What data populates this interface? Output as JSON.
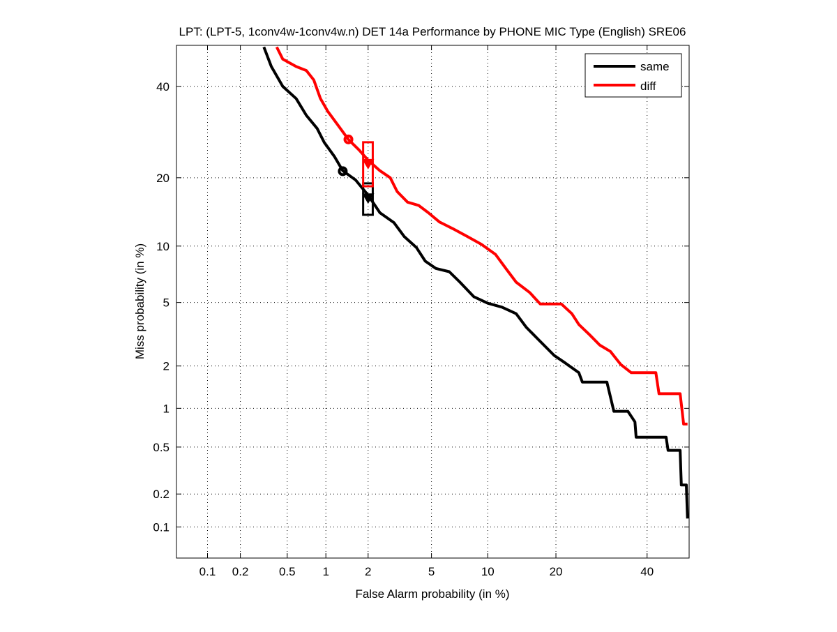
{
  "chart_data": {
    "type": "line",
    "title": "LPT: (LPT-5, 1conv4w-1conv4w.n) DET 14a Performance by PHONE MIC Type (English) SRE06",
    "xlabel": "False Alarm probability (in %)",
    "ylabel": "Miss probability (in %)",
    "xscale": "normal-deviate",
    "yscale": "normal-deviate",
    "xlim": [
      0.05,
      50
    ],
    "ylim": [
      0.05,
      50
    ],
    "xticks": [
      0.1,
      0.2,
      0.5,
      1,
      2,
      5,
      10,
      20,
      40
    ],
    "xtick_labels": [
      "0.1",
      "0.2",
      "0.5",
      "1",
      "2",
      "5",
      "10",
      "20",
      "40"
    ],
    "yticks": [
      0.1,
      0.2,
      0.5,
      1,
      2,
      5,
      10,
      20,
      40
    ],
    "ytick_labels": [
      "0.1",
      "0.2",
      "0.5",
      "1",
      "2",
      "5",
      "10",
      "20",
      "40"
    ],
    "grid": true,
    "legend_placement": "top-right",
    "series": [
      {
        "name": "same",
        "color": "#000000",
        "points": [
          [
            0.32,
            50
          ],
          [
            0.37,
            45
          ],
          [
            0.46,
            40
          ],
          [
            0.59,
            37
          ],
          [
            0.71,
            33
          ],
          [
            0.86,
            30
          ],
          [
            0.97,
            27
          ],
          [
            1.16,
            24
          ],
          [
            1.33,
            21.3
          ],
          [
            1.64,
            19.6
          ],
          [
            2.0,
            17
          ],
          [
            2.4,
            14.3
          ],
          [
            2.96,
            12.9
          ],
          [
            3.44,
            11.1
          ],
          [
            4.07,
            9.85
          ],
          [
            4.6,
            8.4
          ],
          [
            5.3,
            7.7
          ],
          [
            6.3,
            7.4
          ],
          [
            7.2,
            6.5
          ],
          [
            8.5,
            5.4
          ],
          [
            10,
            4.95
          ],
          [
            11.7,
            4.7
          ],
          [
            13.6,
            4.3
          ],
          [
            15.1,
            3.55
          ],
          [
            17.3,
            2.9
          ],
          [
            19.7,
            2.35
          ],
          [
            21.7,
            2.1
          ],
          [
            24.4,
            1.8
          ],
          [
            25.1,
            1.55
          ],
          [
            30.4,
            1.55
          ],
          [
            32,
            0.95
          ],
          [
            35.3,
            0.95
          ],
          [
            37,
            0.79
          ],
          [
            37.3,
            0.6
          ],
          [
            44.8,
            0.6
          ],
          [
            45.3,
            0.47
          ],
          [
            48.4,
            0.47
          ],
          [
            48.7,
            0.24
          ],
          [
            50,
            0.24
          ],
          [
            50.3,
            0.12
          ]
        ],
        "min_dcf_point": [
          1.33,
          21.2
        ],
        "actual_dcf_point": [
          2.0,
          16.5
        ],
        "confidence_box": {
          "fa": [
            1.85,
            2.15
          ],
          "miss": [
            14,
            19
          ]
        }
      },
      {
        "name": "diff",
        "color": "#ff0000",
        "points": [
          [
            0.41,
            50
          ],
          [
            0.46,
            46.9
          ],
          [
            0.59,
            45
          ],
          [
            0.71,
            44
          ],
          [
            0.81,
            41.6
          ],
          [
            0.91,
            37
          ],
          [
            1.03,
            34
          ],
          [
            1.23,
            30.7
          ],
          [
            1.46,
            27.6
          ],
          [
            1.73,
            25.4
          ],
          [
            2.0,
            23.3
          ],
          [
            2.4,
            21.3
          ],
          [
            2.8,
            20
          ],
          [
            3.1,
            17.6
          ],
          [
            3.6,
            15.9
          ],
          [
            4.2,
            15.4
          ],
          [
            4.8,
            14.3
          ],
          [
            5.55,
            13
          ],
          [
            6.6,
            12.1
          ],
          [
            7.9,
            11.1
          ],
          [
            9.3,
            10.2
          ],
          [
            10.9,
            9.1
          ],
          [
            12.2,
            7.7
          ],
          [
            13.6,
            6.5
          ],
          [
            15.6,
            5.7
          ],
          [
            17.3,
            4.9
          ],
          [
            21,
            4.9
          ],
          [
            23,
            4.3
          ],
          [
            24.4,
            3.7
          ],
          [
            26.6,
            3.2
          ],
          [
            28.8,
            2.75
          ],
          [
            31.2,
            2.5
          ],
          [
            33.6,
            2.05
          ],
          [
            36.1,
            1.8
          ],
          [
            42.2,
            1.8
          ],
          [
            43,
            1.28
          ],
          [
            48.4,
            1.28
          ],
          [
            49.3,
            0.76
          ],
          [
            50.3,
            0.76
          ]
        ],
        "min_dcf_point": [
          1.46,
          27.6
        ],
        "actual_dcf_point": [
          2.0,
          22.6
        ],
        "confidence_box": {
          "fa": [
            1.85,
            2.15
          ],
          "miss": [
            18.5,
            27
          ]
        }
      }
    ]
  }
}
